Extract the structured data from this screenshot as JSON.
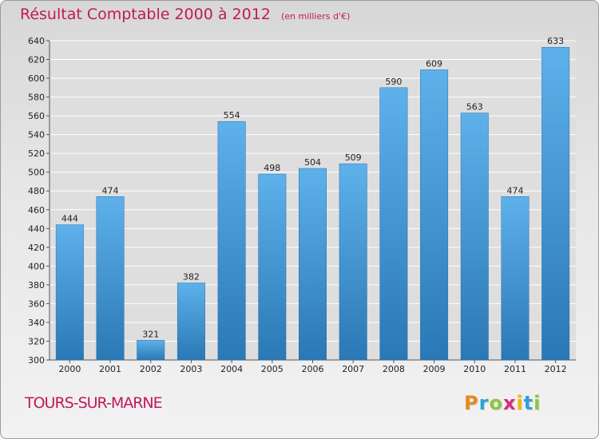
{
  "title": "Résultat Comptable 2000 à 2012",
  "subtitle": "(en milliers d'€)",
  "commune": "TOURS-SUR-MARNE",
  "logo_text": "Proxiti",
  "logo_colors": [
    "#e8891d",
    "#2aa3d9",
    "#8cc63f",
    "#d62a7e",
    "#f2b705",
    "#2aa3d9",
    "#8cc63f"
  ],
  "colors": {
    "bar_top": "#5eb1ea",
    "bar_bottom": "#2a78b5",
    "grid": "#ffffff",
    "axis_text": "#222222",
    "title": "#c2185b"
  },
  "chart_data": {
    "type": "bar",
    "title": "Résultat Comptable 2000 à 2012",
    "subtitle": "(en milliers d'€)",
    "xlabel": "",
    "ylabel": "",
    "categories": [
      "2000",
      "2001",
      "2002",
      "2003",
      "2004",
      "2005",
      "2006",
      "2007",
      "2008",
      "2009",
      "2010",
      "2011",
      "2012"
    ],
    "values": [
      444,
      474,
      321,
      382,
      554,
      498,
      504,
      509,
      590,
      609,
      563,
      474,
      633
    ],
    "ylim": [
      300,
      640
    ],
    "yticks": [
      300,
      320,
      340,
      360,
      380,
      400,
      420,
      440,
      460,
      480,
      500,
      520,
      540,
      560,
      580,
      600,
      620,
      640
    ],
    "grid": true,
    "data_labels": true
  }
}
